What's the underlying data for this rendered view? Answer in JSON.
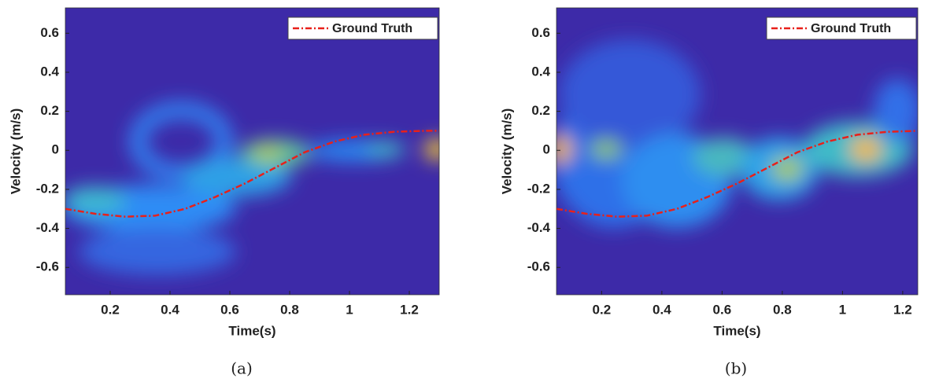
{
  "chart_data": [
    {
      "type": "line",
      "caption": "(a)",
      "xlabel": "Time(s)",
      "ylabel": "Velocity (m/s)",
      "x": [
        0.05,
        0.15,
        0.25,
        0.35,
        0.45,
        0.55,
        0.65,
        0.75,
        0.85,
        0.95,
        1.05,
        1.15,
        1.25,
        1.3
      ],
      "series": [
        {
          "name": "Ground Truth",
          "color": "#e8201a",
          "values": [
            -0.3,
            -0.325,
            -0.34,
            -0.335,
            -0.3,
            -0.24,
            -0.17,
            -0.09,
            -0.01,
            0.045,
            0.08,
            0.095,
            0.1,
            0.1
          ]
        }
      ],
      "xlim": [
        0.05,
        1.3
      ],
      "ylim": [
        -0.74,
        0.73
      ],
      "xticks": [
        0.2,
        0.4,
        0.6,
        0.8,
        1,
        1.2
      ],
      "yticks": [
        -0.6,
        -0.4,
        -0.2,
        0,
        0.2,
        0.4,
        0.6
      ],
      "legend": "upper right"
    },
    {
      "type": "line",
      "caption": "(b)",
      "xlabel": "Time(s)",
      "ylabel": "Velocity (m/s)",
      "x": [
        0.05,
        0.15,
        0.25,
        0.35,
        0.45,
        0.55,
        0.65,
        0.75,
        0.85,
        0.95,
        1.05,
        1.15,
        1.25
      ],
      "series": [
        {
          "name": "Ground Truth",
          "color": "#e8201a",
          "values": [
            -0.3,
            -0.325,
            -0.34,
            -0.335,
            -0.3,
            -0.24,
            -0.17,
            -0.09,
            -0.01,
            0.045,
            0.08,
            0.095,
            0.1
          ]
        }
      ],
      "xlim": [
        0.05,
        1.25
      ],
      "ylim": [
        -0.74,
        0.73
      ],
      "xticks": [
        0.2,
        0.4,
        0.6,
        0.8,
        1,
        1.2
      ],
      "yticks": [
        -0.6,
        -0.4,
        -0.2,
        0,
        0.2,
        0.4,
        0.6
      ],
      "legend": "upper right"
    }
  ]
}
